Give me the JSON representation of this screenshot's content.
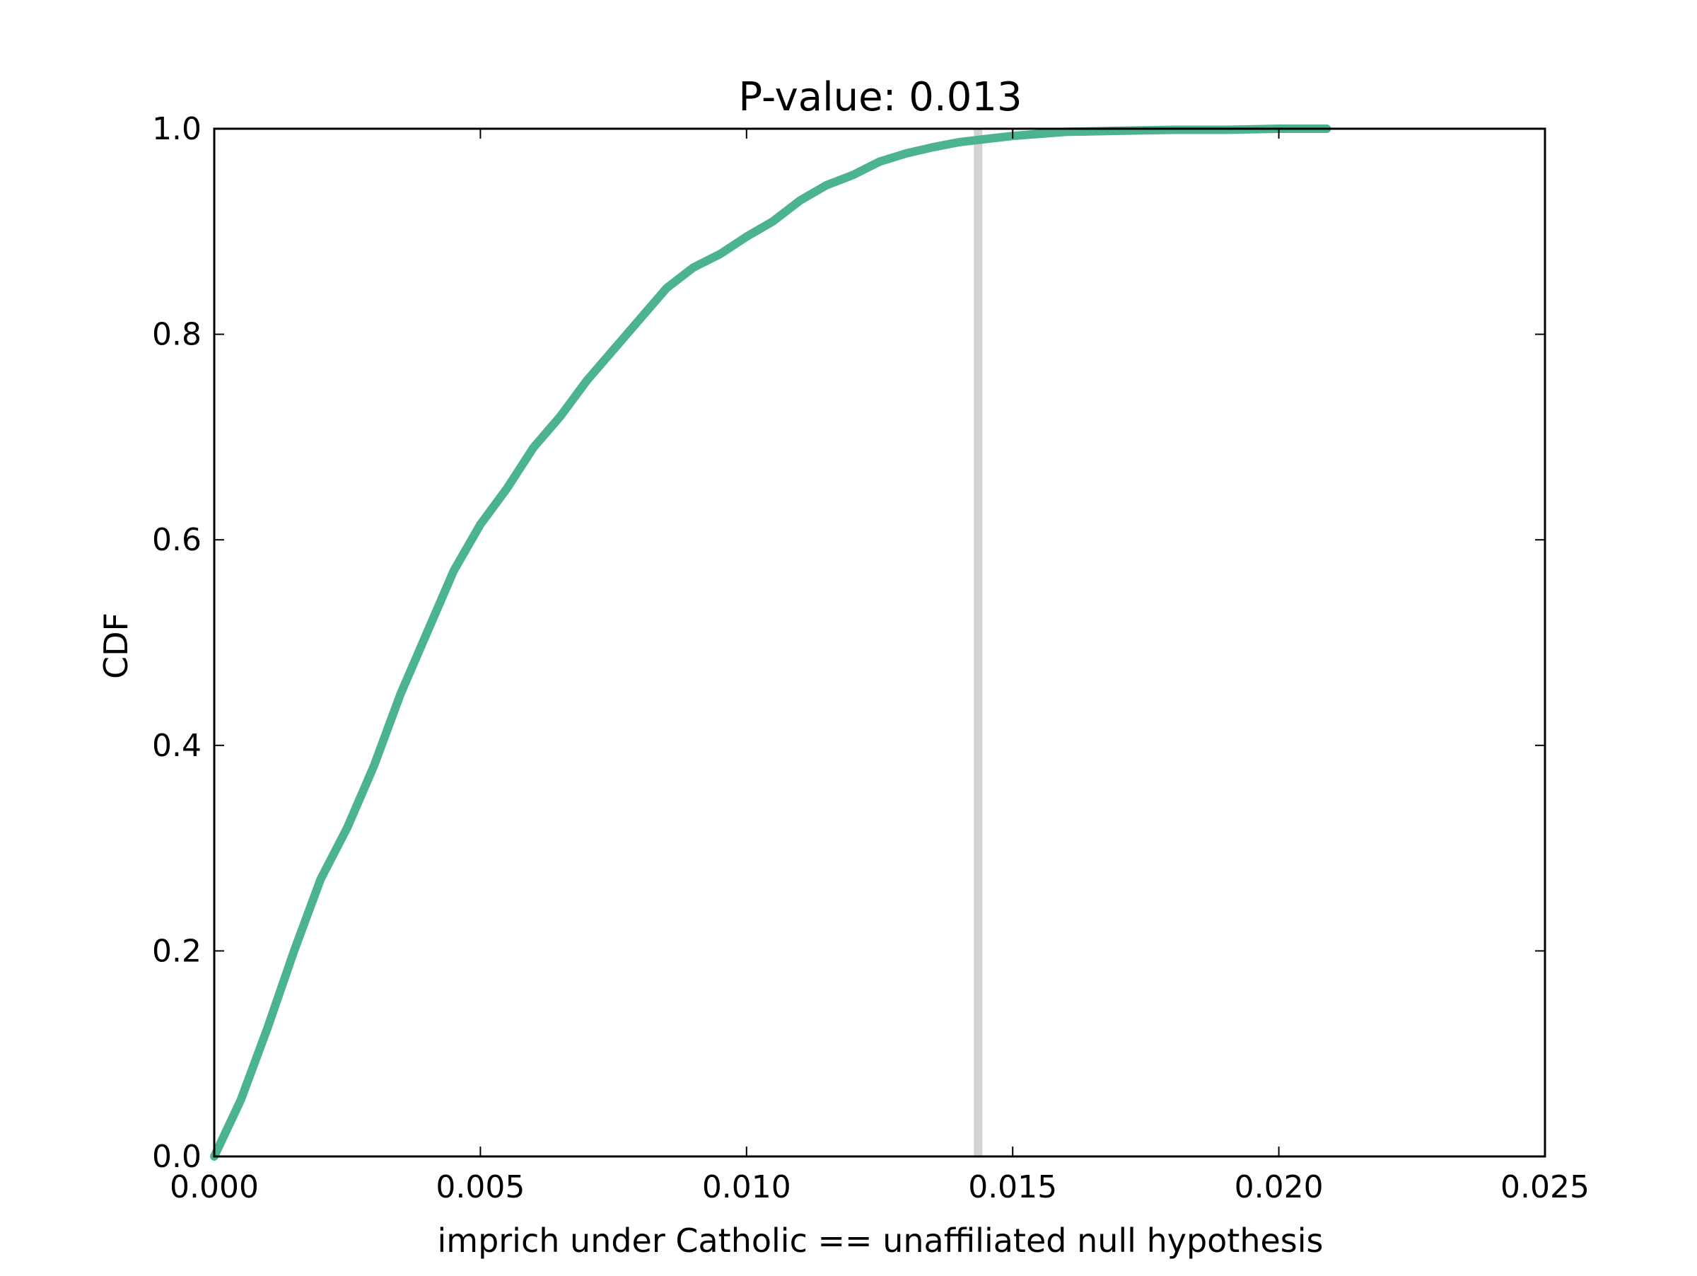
{
  "chart_data": {
    "type": "line",
    "title": "P-value: 0.013",
    "xlabel": "imprich under Catholic == unaffiliated null hypothesis",
    "ylabel": "CDF",
    "xlim": [
      0.0,
      0.025
    ],
    "ylim": [
      0.0,
      1.0
    ],
    "xticks": [
      0.0,
      0.005,
      0.01,
      0.015,
      0.02,
      0.025
    ],
    "xtick_labels": [
      "0.000",
      "0.005",
      "0.010",
      "0.015",
      "0.020",
      "0.025"
    ],
    "yticks": [
      0.0,
      0.2,
      0.4,
      0.6,
      0.8,
      1.0
    ],
    "ytick_labels": [
      "0.0",
      "0.2",
      "0.4",
      "0.6",
      "0.8",
      "1.0"
    ],
    "grid": false,
    "series": [
      {
        "color": "#4cb391",
        "x": [
          0.0,
          0.0005,
          0.001,
          0.0015,
          0.002,
          0.0025,
          0.003,
          0.0035,
          0.004,
          0.0045,
          0.005,
          0.0055,
          0.006,
          0.0065,
          0.007,
          0.0075,
          0.008,
          0.0085,
          0.009,
          0.0095,
          0.01,
          0.0105,
          0.011,
          0.0115,
          0.012,
          0.0125,
          0.013,
          0.0135,
          0.014,
          0.0145,
          0.015,
          0.016,
          0.017,
          0.018,
          0.019,
          0.02,
          0.0209
        ],
        "y": [
          0.0,
          0.055,
          0.125,
          0.2,
          0.27,
          0.32,
          0.38,
          0.45,
          0.51,
          0.57,
          0.615,
          0.65,
          0.69,
          0.72,
          0.755,
          0.785,
          0.815,
          0.845,
          0.865,
          0.878,
          0.895,
          0.91,
          0.93,
          0.945,
          0.955,
          0.968,
          0.976,
          0.982,
          0.987,
          0.99,
          0.993,
          0.997,
          0.998,
          0.999,
          0.999,
          1.0,
          1.0
        ]
      }
    ],
    "reference_line": {
      "x": 0.01435,
      "color": "#d3d3d3"
    }
  }
}
